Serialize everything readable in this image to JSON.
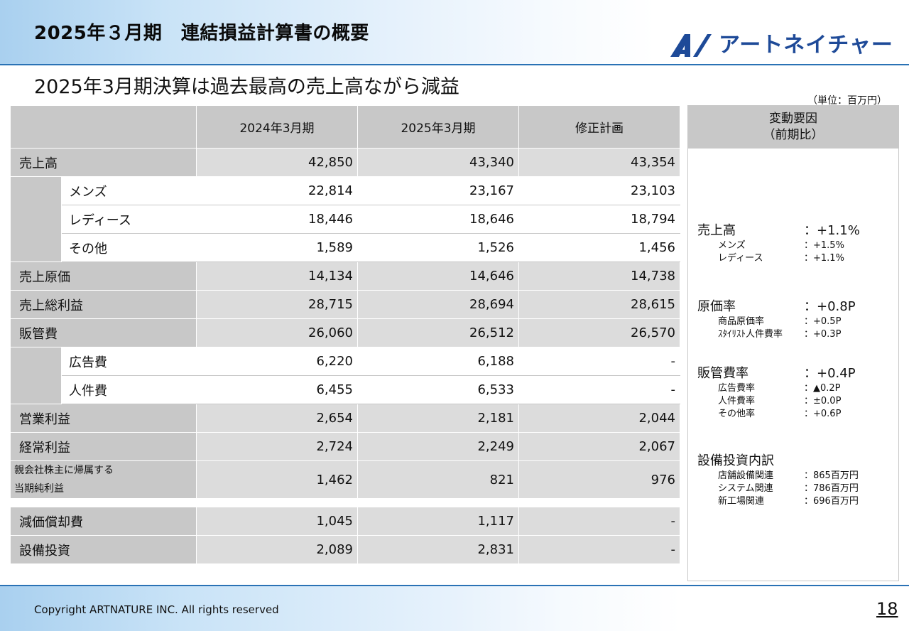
{
  "header": {
    "title": "2025年３月期　連結損益計算書の概要",
    "logo_text": "アートネイチャー"
  },
  "subtitle": "2025年3月期決算は過去最高の売上高ながら減益",
  "unit": "（単位：百万円）",
  "table": {
    "columns": [
      "2024年3月期",
      "2025年3月期",
      "修正計画"
    ],
    "rows": [
      {
        "label": "売上高",
        "values": [
          "42,850",
          "43,340",
          "43,354"
        ]
      },
      {
        "label": "メンズ",
        "values": [
          "22,814",
          "23,167",
          "23,103"
        ]
      },
      {
        "label": "レディース",
        "values": [
          "18,446",
          "18,646",
          "18,794"
        ]
      },
      {
        "label": "その他",
        "values": [
          "1,589",
          "1,526",
          "1,456"
        ]
      },
      {
        "label": "売上原価",
        "values": [
          "14,134",
          "14,646",
          "14,738"
        ]
      },
      {
        "label": "売上総利益",
        "values": [
          "28,715",
          "28,694",
          "28,615"
        ]
      },
      {
        "label": "販管費",
        "values": [
          "26,060",
          "26,512",
          "26,570"
        ]
      },
      {
        "label": "広告費",
        "values": [
          "6,220",
          "6,188",
          "-"
        ]
      },
      {
        "label": "人件費",
        "values": [
          "6,455",
          "6,533",
          "-"
        ]
      },
      {
        "label": "営業利益",
        "values": [
          "2,654",
          "2,181",
          "2,044"
        ]
      },
      {
        "label": "経常利益",
        "values": [
          "2,724",
          "2,249",
          "2,067"
        ]
      },
      {
        "label_line1": "親会社株主に帰属する",
        "label_line2": "当期純利益",
        "values": [
          "1,462",
          "821",
          "976"
        ]
      }
    ],
    "extra_rows": [
      {
        "label": "減価償却費",
        "values": [
          "1,045",
          "1,117",
          "-"
        ]
      },
      {
        "label": "設備投資",
        "values": [
          "2,089",
          "2,831",
          "-"
        ]
      }
    ]
  },
  "side": {
    "header_line1": "変動要因",
    "header_line2": "（前期比）",
    "groups": [
      {
        "label": "売上高",
        "value": "：+1.1%",
        "items": [
          {
            "label": "メンズ",
            "value": "：+1.5%"
          },
          {
            "label": "レディース",
            "value": "：+1.1%"
          }
        ]
      },
      {
        "label": "原価率",
        "value": "：+0.8P",
        "items": [
          {
            "label": "商品原価率",
            "value": "：+0.5P"
          },
          {
            "label": "ｽﾀｲﾘｽﾄ人件費率",
            "value": "：+0.3P"
          }
        ]
      },
      {
        "label": "販管費率",
        "value": "：+0.4P",
        "items": [
          {
            "label": "広告費率",
            "value": "：▲0.2P"
          },
          {
            "label": "人件費率",
            "value": "：±0.0P"
          },
          {
            "label": "その他率",
            "value": "：+0.6P"
          }
        ]
      },
      {
        "label": "設備投資内訳",
        "value": "",
        "items": [
          {
            "label": "店舗設備関連",
            "value": "：865百万円"
          },
          {
            "label": "システム関連",
            "value": "：786百万円"
          },
          {
            "label": "新工場関連",
            "value": "：696百万円"
          }
        ]
      }
    ]
  },
  "footer": {
    "copyright": "Copyright ARTNATURE INC. All rights reserved",
    "page": "18"
  },
  "colors": {
    "header_accent": "#2a72b5",
    "logo": "#1e4a98",
    "table_gray": "#c8c8c8",
    "cell_gray": "#dcdcdc"
  }
}
